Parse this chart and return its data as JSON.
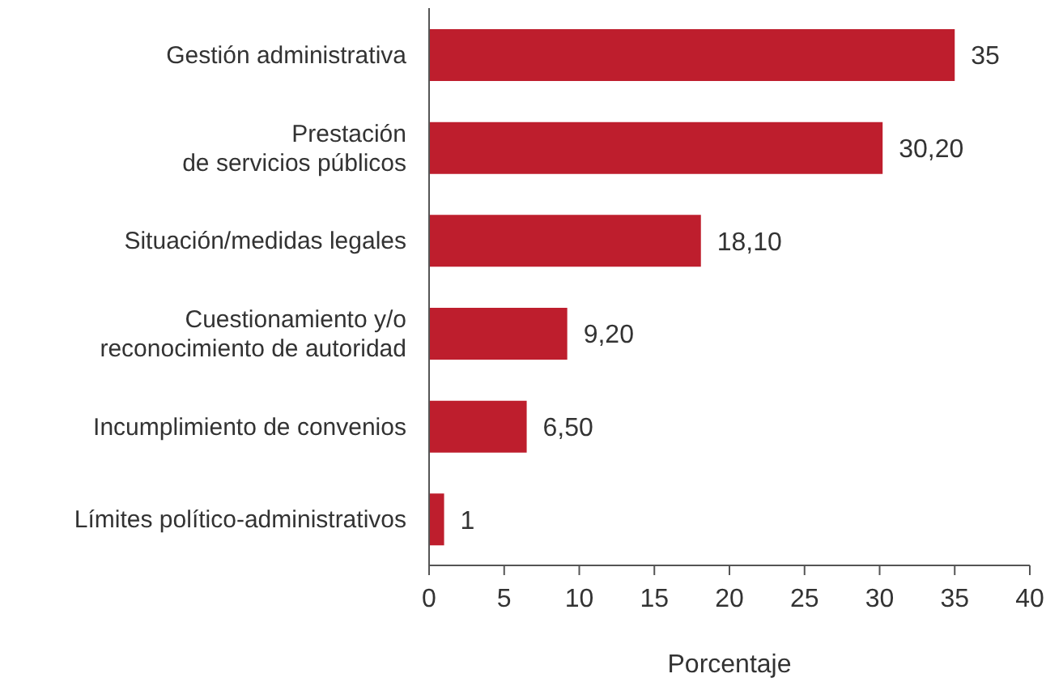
{
  "chart_data": {
    "type": "bar",
    "orientation": "horizontal",
    "categories": [
      "Gestión administrativa",
      "Prestación\nde servicios públicos",
      "Situación/medidas legales",
      "Cuestionamiento y/o\nreconocimiento de autoridad",
      "Incumplimiento de convenios",
      "Límites político-administrativos"
    ],
    "values": [
      35,
      30.2,
      18.1,
      9.2,
      6.5,
      1
    ],
    "value_labels": [
      "35",
      "30,20",
      "18,10",
      "9,20",
      "6,50",
      "1"
    ],
    "color": "#be1e2d",
    "xlim": [
      0,
      40
    ],
    "xticks": [
      0,
      5,
      10,
      15,
      20,
      25,
      30,
      35,
      40
    ],
    "xlabel": "Porcentaje"
  }
}
